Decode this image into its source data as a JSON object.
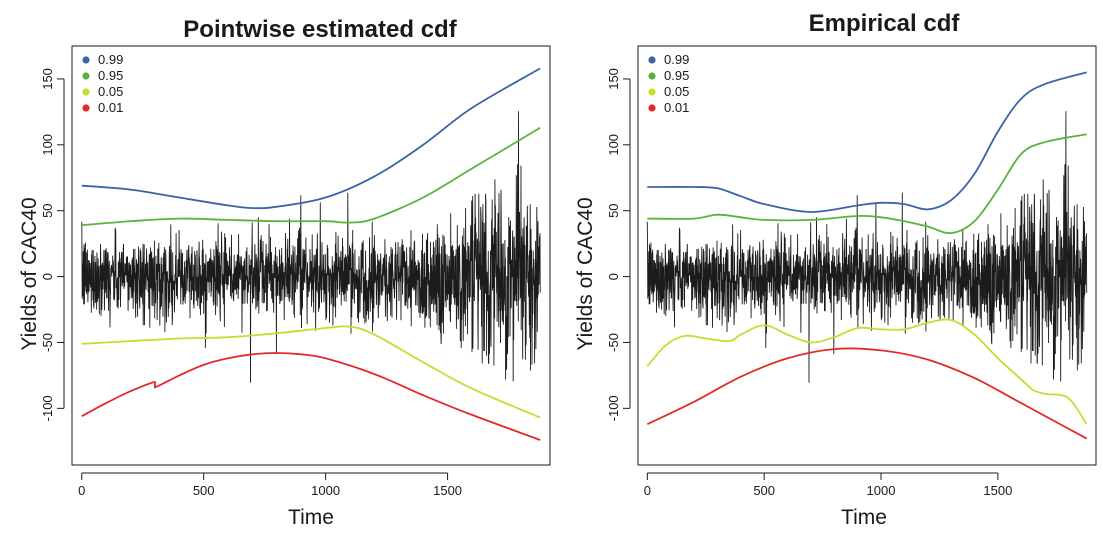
{
  "chart_data": [
    {
      "type": "line",
      "title": "Pointwise estimated cdf",
      "xlabel": "Time",
      "ylabel": "Yields of CAC40",
      "xlim": [
        -40,
        1920
      ],
      "ylim": [
        -143,
        175
      ],
      "xticks": [
        0,
        500,
        1000,
        1500
      ],
      "yticks": [
        -100,
        -50,
        0,
        50,
        100,
        150
      ],
      "legend_position": "top-left",
      "grid": false,
      "series": [
        {
          "name": "0.99",
          "color": "#3a63a8",
          "x": [
            0,
            200,
            400,
            600,
            700,
            800,
            1000,
            1200,
            1400,
            1600,
            1880
          ],
          "y": [
            69,
            66,
            60,
            54,
            52,
            53,
            60,
            76,
            100,
            128,
            158
          ]
        },
        {
          "name": "0.95",
          "color": "#5ab33a",
          "x": [
            0,
            200,
            400,
            600,
            800,
            1000,
            1100,
            1200,
            1400,
            1600,
            1880
          ],
          "y": [
            39,
            42,
            44,
            43,
            42,
            42,
            41,
            44,
            60,
            82,
            113
          ]
        },
        {
          "name": "0.05",
          "color": "#c7dc2e",
          "x": [
            0,
            200,
            400,
            600,
            800,
            1000,
            1100,
            1200,
            1400,
            1600,
            1880
          ],
          "y": [
            -51,
            -49,
            -47,
            -46,
            -43,
            -39,
            -38,
            -44,
            -65,
            -85,
            -107
          ]
        },
        {
          "name": "0.01",
          "color": "#e32a2a",
          "x": [
            0,
            100,
            200,
            300,
            300,
            400,
            500,
            600,
            700,
            800,
            900,
            1000,
            1200,
            1400,
            1600,
            1880
          ],
          "y": [
            -106,
            -96,
            -87,
            -80,
            -84,
            -75,
            -67,
            -62,
            -59,
            -58,
            -59,
            -62,
            -74,
            -90,
            -105,
            -124
          ]
        }
      ]
    },
    {
      "type": "line",
      "title": "Empirical cdf",
      "xlabel": "Time",
      "ylabel": "Yields of CAC40",
      "xlim": [
        -40,
        1920
      ],
      "ylim": [
        -143,
        175
      ],
      "xticks": [
        0,
        500,
        1000,
        1500
      ],
      "yticks": [
        -100,
        -50,
        0,
        50,
        100,
        150
      ],
      "legend_position": "top-left",
      "grid": false,
      "series": [
        {
          "name": "0.99",
          "color": "#3a63a8",
          "x": [
            0,
            200,
            300,
            400,
            500,
            700,
            900,
            1000,
            1100,
            1200,
            1300,
            1400,
            1500,
            1600,
            1700,
            1880
          ],
          "y": [
            68,
            68,
            67,
            61,
            55,
            49,
            54,
            56,
            55,
            51,
            58,
            78,
            110,
            135,
            146,
            155
          ]
        },
        {
          "name": "0.95",
          "color": "#5ab33a",
          "x": [
            0,
            200,
            300,
            400,
            500,
            700,
            900,
            1000,
            1100,
            1200,
            1300,
            1400,
            1500,
            1600,
            1700,
            1880
          ],
          "y": [
            44,
            44,
            47,
            45,
            43,
            43,
            46,
            45,
            42,
            38,
            33,
            42,
            66,
            93,
            102,
            108
          ]
        },
        {
          "name": "0.05",
          "color": "#c7dc2e",
          "x": [
            0,
            80,
            160,
            250,
            350,
            400,
            500,
            600,
            700,
            800,
            900,
            1000,
            1100,
            1200,
            1300,
            1400,
            1500,
            1600,
            1650,
            1700,
            1800,
            1880
          ],
          "y": [
            -68,
            -52,
            -45,
            -47,
            -49,
            -44,
            -37,
            -44,
            -50,
            -46,
            -39,
            -40,
            -40,
            -35,
            -33,
            -44,
            -62,
            -78,
            -86,
            -89,
            -92,
            -112
          ]
        },
        {
          "name": "0.01",
          "color": "#e32a2a",
          "x": [
            0,
            200,
            400,
            600,
            800,
            1000,
            1200,
            1400,
            1600,
            1880
          ],
          "y": [
            -112,
            -95,
            -76,
            -62,
            -55,
            -56,
            -63,
            -77,
            -96,
            -123
          ]
        }
      ]
    }
  ]
}
